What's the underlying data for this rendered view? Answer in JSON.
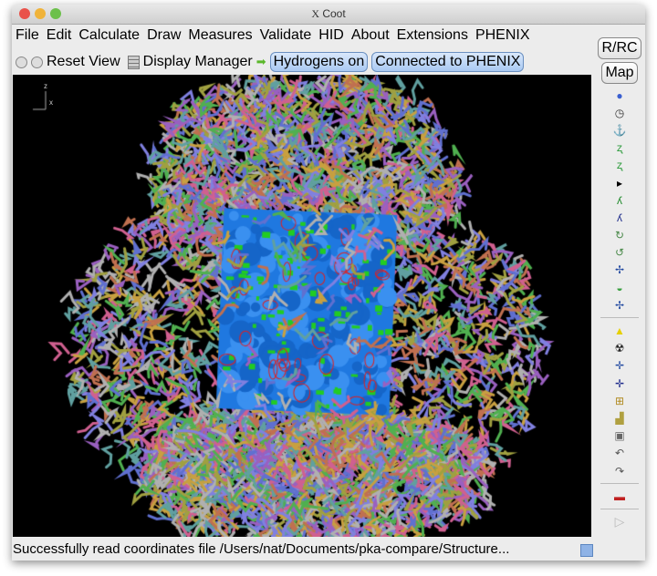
{
  "window": {
    "title": "Coot",
    "title_icon": "X"
  },
  "menu": [
    "File",
    "Edit",
    "Calculate",
    "Draw",
    "Measures",
    "Validate",
    "HID",
    "About",
    "Extensions",
    "PHENIX"
  ],
  "toolbar": {
    "reset_view": "Reset View",
    "display_manager": "Display Manager",
    "hydrogens": "Hydrogens on",
    "phenix": "Connected to PHENIX"
  },
  "right_toolbar": {
    "rrc": "R/RC",
    "map": "Map",
    "icons": [
      "rotate-translate-icon",
      "clock-icon",
      "anchor-icon",
      "refine-zone-icon",
      "regularize-icon",
      "arrow-right-icon",
      "rigid-body-icon",
      "rotamer-icon",
      "torsion-icon",
      "flip-peptide-icon",
      "side-chain-icon",
      "sidechain-180-icon",
      "backrub-icon"
    ],
    "icons2": [
      "place-atom-icon",
      "radiation-icon",
      "add-atom-icon",
      "add-terminal-icon",
      "add-residue-icon",
      "stamp-icon",
      "delete-icon",
      "undo-icon",
      "redo-icon"
    ],
    "icons3": [
      "flag-icon"
    ]
  },
  "axes": {
    "z": "z",
    "x": "x"
  },
  "status": "Successfully read coordinates file /Users/nat/Documents/pka-compare/Structure..."
}
